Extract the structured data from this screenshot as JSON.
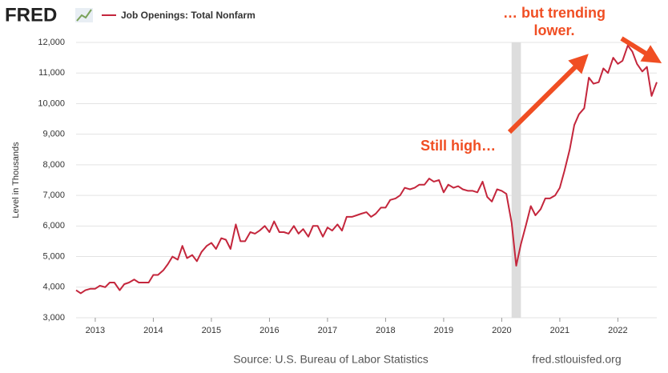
{
  "chart_data": {
    "type": "line",
    "brand": "FRED",
    "ylabel": "Level in Thousands",
    "source": "Source: U.S. Bureau of Labor Statistics",
    "site": "fred.stlouisfed.org",
    "annotations": [
      "Still high…",
      "… but trending",
      "lower."
    ],
    "shaded": [
      2020.17,
      2020.33
    ],
    "xlim": [
      2012.67,
      2022.67
    ],
    "xticks": [
      2013,
      2014,
      2015,
      2016,
      2017,
      2018,
      2019,
      2020,
      2021,
      2022
    ],
    "ylim": [
      3000,
      12000
    ],
    "yticks": [
      {
        "value": 3000,
        "label": "3,000"
      },
      {
        "value": 4000,
        "label": "4,000"
      },
      {
        "value": 5000,
        "label": "5,000"
      },
      {
        "value": 6000,
        "label": "6,000"
      },
      {
        "value": 7000,
        "label": "7,000"
      },
      {
        "value": 8000,
        "label": "8,000"
      },
      {
        "value": 9000,
        "label": "9,000"
      },
      {
        "value": 10000,
        "label": "10,000"
      },
      {
        "value": 11000,
        "label": "11,000"
      },
      {
        "value": 12000,
        "label": "12,000"
      }
    ],
    "grid": true,
    "x": [
      2012.67,
      2012.75,
      2012.83,
      2012.92,
      2013.0,
      2013.08,
      2013.17,
      2013.25,
      2013.33,
      2013.42,
      2013.5,
      2013.58,
      2013.67,
      2013.75,
      2013.83,
      2013.92,
      2014.0,
      2014.08,
      2014.17,
      2014.25,
      2014.33,
      2014.42,
      2014.5,
      2014.58,
      2014.67,
      2014.75,
      2014.83,
      2014.92,
      2015.0,
      2015.08,
      2015.17,
      2015.25,
      2015.33,
      2015.42,
      2015.5,
      2015.58,
      2015.67,
      2015.75,
      2015.83,
      2015.92,
      2016.0,
      2016.08,
      2016.17,
      2016.25,
      2016.33,
      2016.42,
      2016.5,
      2016.58,
      2016.67,
      2016.75,
      2016.83,
      2016.92,
      2017.0,
      2017.08,
      2017.17,
      2017.25,
      2017.33,
      2017.42,
      2017.5,
      2017.58,
      2017.67,
      2017.75,
      2017.83,
      2017.92,
      2018.0,
      2018.08,
      2018.17,
      2018.25,
      2018.33,
      2018.42,
      2018.5,
      2018.58,
      2018.67,
      2018.75,
      2018.83,
      2018.92,
      2019.0,
      2019.08,
      2019.17,
      2019.25,
      2019.33,
      2019.42,
      2019.5,
      2019.58,
      2019.67,
      2019.75,
      2019.83,
      2019.92,
      2020.0,
      2020.08,
      2020.17,
      2020.25,
      2020.33,
      2020.42,
      2020.5,
      2020.58,
      2020.67,
      2020.75,
      2020.83,
      2020.92,
      2021.0,
      2021.08,
      2021.17,
      2021.25,
      2021.33,
      2021.42,
      2021.5,
      2021.58,
      2021.67,
      2021.75,
      2021.83,
      2021.92,
      2022.0,
      2022.08,
      2022.17,
      2022.25,
      2022.33,
      2022.42,
      2022.5,
      2022.58,
      2022.67
    ],
    "series": [
      {
        "name": "Job Openings: Total Nonfarm",
        "color": "#c4263c",
        "values": [
          3900,
          3800,
          3900,
          3950,
          3950,
          4050,
          4000,
          4150,
          4150,
          3900,
          4100,
          4150,
          4250,
          4150,
          4150,
          4150,
          4400,
          4400,
          4550,
          4750,
          5000,
          4900,
          5350,
          4950,
          5050,
          4850,
          5150,
          5350,
          5450,
          5250,
          5600,
          5550,
          5250,
          6050,
          5500,
          5500,
          5800,
          5750,
          5850,
          6000,
          5800,
          6150,
          5800,
          5800,
          5750,
          6000,
          5750,
          5900,
          5650,
          6000,
          6000,
          5650,
          5950,
          5850,
          6050,
          5850,
          6300,
          6300,
          6350,
          6400,
          6450,
          6300,
          6400,
          6600,
          6600,
          6850,
          6900,
          7000,
          7250,
          7200,
          7250,
          7350,
          7350,
          7550,
          7450,
          7500,
          7100,
          7350,
          7250,
          7300,
          7200,
          7150,
          7150,
          7100,
          7450,
          6950,
          6800,
          7200,
          7150,
          7050,
          6100,
          4700,
          5400,
          6050,
          6650,
          6350,
          6550,
          6900,
          6900,
          7000,
          7250,
          7800,
          8500,
          9300,
          9650,
          9850,
          10850,
          10650,
          10700,
          11150,
          11000,
          11500,
          11300,
          11400,
          11900,
          11700,
          11300,
          11050,
          11200,
          10250,
          10700
        ]
      }
    ]
  }
}
